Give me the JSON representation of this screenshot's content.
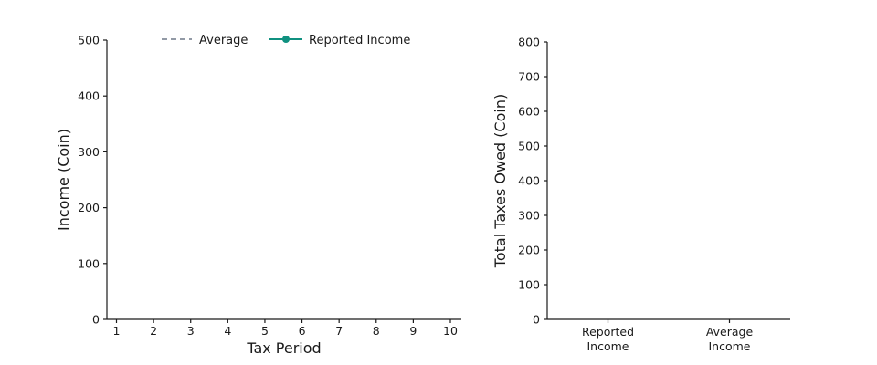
{
  "figure": {
    "background": "#ffffff",
    "axis_color": "#1a1a1a",
    "text_color": "#1a1a1a"
  },
  "chart_data": [
    {
      "id": "income-over-time",
      "type": "line",
      "title": "",
      "xlabel": "Tax Period",
      "ylabel": "Income (Coin)",
      "x_ticks": [
        "1",
        "2",
        "3",
        "4",
        "5",
        "6",
        "7",
        "8",
        "9",
        "10"
      ],
      "y_ticks": [
        "0",
        "100",
        "200",
        "300",
        "400",
        "500"
      ],
      "xlim": [
        0.5,
        10.5
      ],
      "ylim": [
        0,
        500
      ],
      "grid": false,
      "legend_position": "top-outside",
      "series": [
        {
          "name": "Average",
          "color": "#828c99",
          "line_style": "dashed",
          "marker": "none",
          "x": [],
          "y": []
        },
        {
          "name": "Reported Income",
          "color": "#109180",
          "line_style": "solid",
          "marker": "circle",
          "x": [],
          "y": []
        }
      ],
      "note": "axes rendered with no data points plotted"
    },
    {
      "id": "total-taxes-owed",
      "type": "bar",
      "title": "",
      "xlabel": "",
      "ylabel": "Total Taxes Owed (Coin)",
      "categories": [
        [
          "Reported",
          "Income"
        ],
        [
          "Average",
          "Income"
        ]
      ],
      "y_ticks": [
        "0",
        "100",
        "200",
        "300",
        "400",
        "500",
        "600",
        "700",
        "800"
      ],
      "ylim": [
        0,
        800
      ],
      "grid": false,
      "values": [],
      "note": "axes rendered with no bars plotted"
    }
  ]
}
